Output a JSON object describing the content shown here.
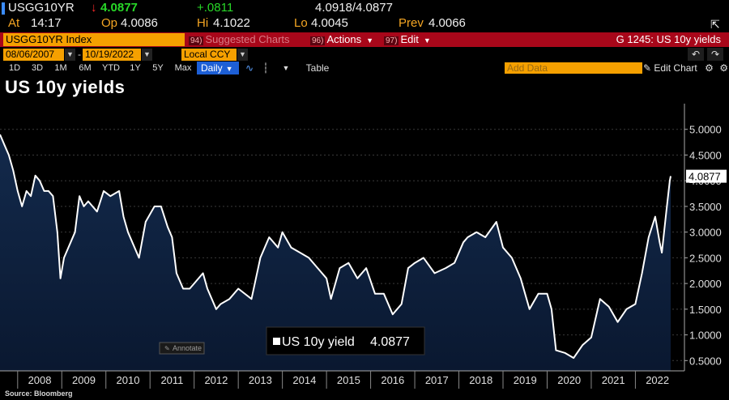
{
  "quote": {
    "ticker": "USGG10YR",
    "last": "4.0877",
    "change": "+.0811",
    "bid_ask": "4.0918/4.0877",
    "at_label": "At",
    "time": "14:17",
    "open_label": "Op",
    "open": "4.0086",
    "high_label": "Hi",
    "high": "4.1022",
    "low_label": "Lo",
    "low": "4.0045",
    "prev_label": "Prev",
    "prev": "4.0066"
  },
  "toolbar": {
    "security": "USGG10YR Index",
    "suggested_num": "94)",
    "suggested": "Suggested Charts",
    "actions_num": "96)",
    "actions": "Actions",
    "edit_num": "97)",
    "edit": "Edit",
    "chart_id": "G 1245: US 10y yields",
    "start_date": "08/06/2007",
    "end_date": "10/19/2022",
    "currency": "Local CCY",
    "periods": [
      "1D",
      "3D",
      "1M",
      "6M",
      "YTD",
      "1Y",
      "5Y",
      "Max"
    ],
    "frequency": "Daily",
    "table": "Table",
    "add_data_placeholder": "Add Data",
    "edit_chart": "Edit Chart"
  },
  "chart_data": {
    "type": "area",
    "title": "US 10y yields",
    "series_name": "US 10y yield",
    "last_value": "4.0877",
    "annotate_label": "Annotate",
    "source": "Source: Bloomberg",
    "x_range": [
      2007.6,
      2022.8
    ],
    "ylim": [
      0.3,
      5.2
    ],
    "y_ticks": [
      "0.5000",
      "1.0000",
      "1.5000",
      "2.0000",
      "2.5000",
      "3.0000",
      "3.5000",
      "4.0000",
      "4.5000",
      "5.0000"
    ],
    "x_ticks": [
      "2008",
      "2009",
      "2010",
      "2011",
      "2012",
      "2013",
      "2014",
      "2015",
      "2016",
      "2017",
      "2018",
      "2019",
      "2020",
      "2021",
      "2022"
    ],
    "points": [
      [
        2007.6,
        4.9
      ],
      [
        2007.7,
        4.7
      ],
      [
        2007.8,
        4.5
      ],
      [
        2007.9,
        4.2
      ],
      [
        2008.0,
        3.8
      ],
      [
        2008.1,
        3.5
      ],
      [
        2008.2,
        3.8
      ],
      [
        2008.3,
        3.7
      ],
      [
        2008.4,
        4.1
      ],
      [
        2008.5,
        4.0
      ],
      [
        2008.6,
        3.8
      ],
      [
        2008.7,
        3.8
      ],
      [
        2008.8,
        3.7
      ],
      [
        2008.9,
        3.0
      ],
      [
        2008.97,
        2.1
      ],
      [
        2009.05,
        2.5
      ],
      [
        2009.2,
        2.8
      ],
      [
        2009.3,
        3.0
      ],
      [
        2009.4,
        3.7
      ],
      [
        2009.5,
        3.5
      ],
      [
        2009.6,
        3.6
      ],
      [
        2009.8,
        3.4
      ],
      [
        2009.95,
        3.8
      ],
      [
        2010.1,
        3.7
      ],
      [
        2010.3,
        3.8
      ],
      [
        2010.4,
        3.3
      ],
      [
        2010.5,
        3.0
      ],
      [
        2010.6,
        2.8
      ],
      [
        2010.75,
        2.5
      ],
      [
        2010.9,
        3.2
      ],
      [
        2011.1,
        3.5
      ],
      [
        2011.25,
        3.5
      ],
      [
        2011.4,
        3.1
      ],
      [
        2011.5,
        2.9
      ],
      [
        2011.6,
        2.2
      ],
      [
        2011.75,
        1.9
      ],
      [
        2011.9,
        1.9
      ],
      [
        2012.0,
        2.0
      ],
      [
        2012.2,
        2.2
      ],
      [
        2012.3,
        1.9
      ],
      [
        2012.5,
        1.5
      ],
      [
        2012.6,
        1.6
      ],
      [
        2012.8,
        1.7
      ],
      [
        2013.0,
        1.9
      ],
      [
        2013.3,
        1.7
      ],
      [
        2013.5,
        2.5
      ],
      [
        2013.7,
        2.9
      ],
      [
        2013.9,
        2.7
      ],
      [
        2014.0,
        3.0
      ],
      [
        2014.2,
        2.7
      ],
      [
        2014.4,
        2.6
      ],
      [
        2014.6,
        2.5
      ],
      [
        2014.8,
        2.3
      ],
      [
        2015.0,
        2.1
      ],
      [
        2015.1,
        1.7
      ],
      [
        2015.3,
        2.3
      ],
      [
        2015.5,
        2.4
      ],
      [
        2015.7,
        2.1
      ],
      [
        2015.9,
        2.3
      ],
      [
        2016.1,
        1.8
      ],
      [
        2016.3,
        1.8
      ],
      [
        2016.5,
        1.4
      ],
      [
        2016.7,
        1.6
      ],
      [
        2016.85,
        2.3
      ],
      [
        2017.0,
        2.4
      ],
      [
        2017.2,
        2.5
      ],
      [
        2017.45,
        2.2
      ],
      [
        2017.7,
        2.3
      ],
      [
        2017.9,
        2.4
      ],
      [
        2018.1,
        2.8
      ],
      [
        2018.2,
        2.9
      ],
      [
        2018.4,
        3.0
      ],
      [
        2018.6,
        2.9
      ],
      [
        2018.85,
        3.2
      ],
      [
        2019.0,
        2.7
      ],
      [
        2019.2,
        2.5
      ],
      [
        2019.4,
        2.1
      ],
      [
        2019.6,
        1.5
      ],
      [
        2019.8,
        1.8
      ],
      [
        2020.0,
        1.8
      ],
      [
        2020.1,
        1.5
      ],
      [
        2020.2,
        0.7
      ],
      [
        2020.4,
        0.65
      ],
      [
        2020.6,
        0.55
      ],
      [
        2020.8,
        0.8
      ],
      [
        2021.0,
        0.95
      ],
      [
        2021.2,
        1.7
      ],
      [
        2021.4,
        1.55
      ],
      [
        2021.6,
        1.25
      ],
      [
        2021.8,
        1.5
      ],
      [
        2022.0,
        1.6
      ],
      [
        2022.15,
        2.2
      ],
      [
        2022.3,
        2.9
      ],
      [
        2022.45,
        3.3
      ],
      [
        2022.55,
        2.8
      ],
      [
        2022.6,
        2.6
      ],
      [
        2022.7,
        3.4
      ],
      [
        2022.78,
        4.0
      ],
      [
        2022.8,
        4.09
      ]
    ]
  }
}
